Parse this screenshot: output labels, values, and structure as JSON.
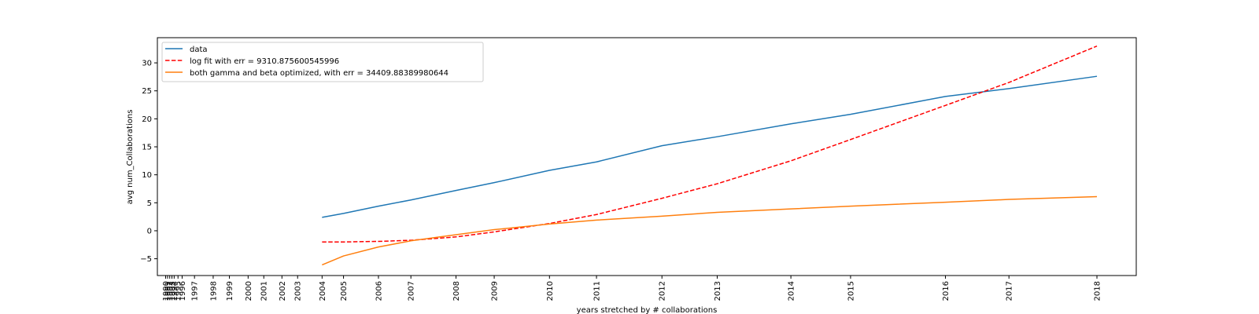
{
  "chart_data": {
    "type": "line",
    "xlabel": "years stretched by # collaborations",
    "ylabel": "avg num_Collaborations",
    "ylim": [
      -8,
      34.5
    ],
    "yticks": [
      -5,
      0,
      5,
      10,
      15,
      20,
      25,
      30
    ],
    "x_tick_years": [
      1990,
      1991,
      1992,
      1993,
      1994,
      1995,
      1996,
      1997,
      1998,
      1999,
      2000,
      2001,
      2002,
      2003,
      2004,
      2005,
      2006,
      2007,
      2008,
      2009,
      2010,
      2011,
      2012,
      2013,
      2014,
      2015,
      2016,
      2017,
      2018
    ],
    "x_tick_labels": [
      "1990",
      "1991",
      "1992",
      "1993",
      "1994",
      "1995",
      "1996",
      "1997",
      "1998",
      "1999",
      "2000",
      "2001",
      "2002",
      "2003",
      "2004",
      "2005",
      "2006",
      "2007",
      "2008",
      "2009",
      "2010",
      "2011",
      "2012",
      "2013",
      "2014",
      "2015",
      "2016",
      "2017",
      "2018"
    ],
    "x_tick_stretched": [
      0.0,
      0.07,
      0.15,
      0.23,
      0.31,
      0.45,
      0.6,
      1.05,
      1.73,
      2.32,
      3.0,
      3.57,
      4.23,
      4.8,
      5.69,
      6.47,
      7.74,
      8.92,
      10.56,
      11.95,
      13.96,
      15.67,
      18.05,
      20.06,
      22.74,
      24.91,
      28.36,
      30.67,
      33.87
    ],
    "x_domain": [
      -0.3,
      35.3
    ],
    "series": [
      {
        "name": "data",
        "color": "#1f77b4",
        "dash": "solid",
        "x": [
          2004,
          2005,
          2006,
          2007,
          2008,
          2009,
          2010,
          2011,
          2012,
          2013,
          2014,
          2015,
          2016,
          2017,
          2018
        ],
        "values": [
          2.4,
          3.1,
          4.4,
          5.5,
          7.2,
          8.6,
          10.8,
          12.3,
          15.2,
          16.8,
          19.1,
          20.8,
          24.0,
          25.4,
          27.6
        ]
      },
      {
        "name": "log fit with err = 9310.875600545996",
        "color": "#ff0000",
        "dash": "dashed",
        "x": [
          2004,
          2005,
          2006,
          2007,
          2008,
          2009,
          2010,
          2011,
          2012,
          2013,
          2014,
          2015,
          2016,
          2017,
          2018
        ],
        "values": [
          -2.0,
          -2.0,
          -1.9,
          -1.7,
          -1.1,
          -0.2,
          1.3,
          2.9,
          5.8,
          8.4,
          12.5,
          16.3,
          22.4,
          26.5,
          33.0
        ]
      },
      {
        "name": "both gamma and beta optimized, with err = 34409.88389980644",
        "color": "#ff7f0e",
        "dash": "solid",
        "x": [
          2004,
          2005,
          2006,
          2007,
          2008,
          2009,
          2010,
          2011,
          2012,
          2013,
          2014,
          2015,
          2016,
          2017,
          2018
        ],
        "values": [
          -6.1,
          -4.5,
          -2.9,
          -1.8,
          -0.7,
          0.2,
          1.2,
          1.9,
          2.6,
          3.3,
          3.9,
          4.4,
          5.1,
          5.6,
          6.1
        ]
      }
    ],
    "legend_position": "top-left",
    "grid": false
  }
}
